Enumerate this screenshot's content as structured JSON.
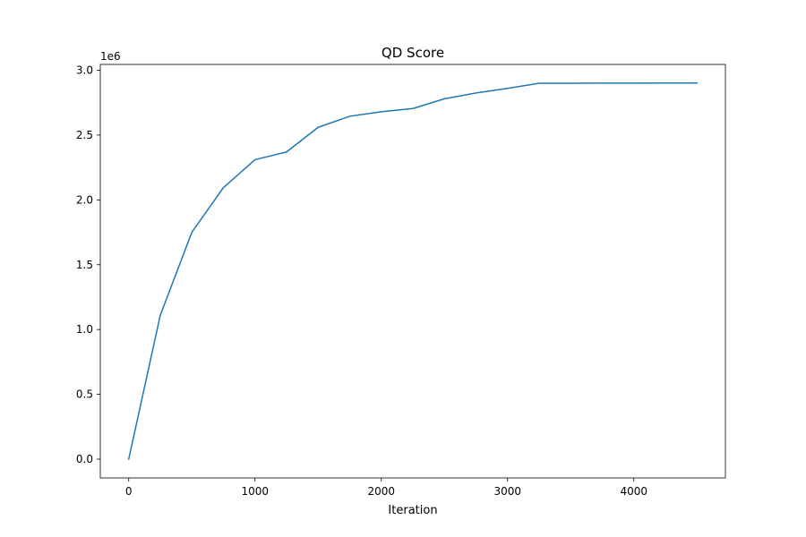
{
  "chart_data": {
    "type": "line",
    "title": "QD Score",
    "xlabel": "Iteration",
    "ylabel": "",
    "y_offset_label": "1e6",
    "xlim": [
      -225,
      4725
    ],
    "ylim": [
      -0.145,
      3.045
    ],
    "xticks": [
      0,
      1000,
      2000,
      3000,
      4000
    ],
    "xtick_labels": [
      "0",
      "1000",
      "2000",
      "3000",
      "4000"
    ],
    "yticks": [
      0.0,
      0.5,
      1.0,
      1.5,
      2.0,
      2.5,
      3.0
    ],
    "ytick_labels": [
      "0.0",
      "0.5",
      "1.0",
      "1.5",
      "2.0",
      "2.5",
      "3.0"
    ],
    "grid": false,
    "series": [
      {
        "color": "#1f77b4",
        "x": [
          0,
          250,
          500,
          750,
          1000,
          1250,
          1500,
          1750,
          2000,
          2250,
          2500,
          2750,
          3000,
          3250,
          3500,
          3750,
          4000,
          4250,
          4500
        ],
        "y": [
          0.0,
          1.11,
          1.75,
          2.095,
          2.31,
          2.37,
          2.56,
          2.645,
          2.68,
          2.705,
          2.78,
          2.825,
          2.86,
          2.9,
          2.9,
          2.901,
          2.901,
          2.902,
          2.902
        ]
      }
    ]
  }
}
